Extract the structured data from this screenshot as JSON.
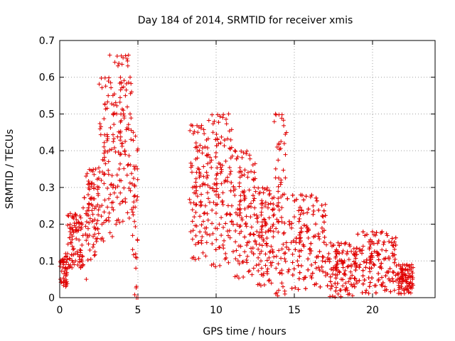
{
  "chart_data": {
    "type": "scatter",
    "title": "Day 184 of 2014, SRMTID for receiver xmis",
    "xlabel": "GPS time / hours",
    "ylabel": "SRMTID / TECUs",
    "xlim": [
      0,
      24
    ],
    "ylim": [
      0,
      0.7
    ],
    "xticks": [
      0,
      5,
      10,
      15,
      20
    ],
    "yticks": [
      0,
      0.1,
      0.2,
      0.3,
      0.4,
      0.5,
      0.6,
      0.7
    ],
    "ytick_labels": [
      "0",
      "0.1",
      "0.2",
      "0.3",
      "0.4",
      "0.5",
      "0.6",
      "0.7"
    ],
    "grid": true,
    "marker": "+",
    "color": "#e00000",
    "segments": [
      {
        "x_start": 0.0,
        "x_end": 0.5,
        "lower": 0.03,
        "upper": 0.12
      },
      {
        "x_start": 0.5,
        "x_end": 1.5,
        "lower": 0.08,
        "upper": 0.23
      },
      {
        "x_start": 1.5,
        "x_end": 2.5,
        "lower": 0.1,
        "upper": 0.35
      },
      {
        "x_start": 2.5,
        "x_end": 3.5,
        "lower": 0.15,
        "upper": 0.6
      },
      {
        "x_start": 3.5,
        "x_end": 4.6,
        "lower": 0.2,
        "upper": 0.66
      },
      {
        "x_start": 4.6,
        "x_end": 5.0,
        "lower": 0.0,
        "upper": 0.45
      },
      {
        "x_start": 8.3,
        "x_end": 9.5,
        "lower": 0.1,
        "upper": 0.47
      },
      {
        "x_start": 9.5,
        "x_end": 11.0,
        "lower": 0.08,
        "upper": 0.5
      },
      {
        "x_start": 11.0,
        "x_end": 12.5,
        "lower": 0.05,
        "upper": 0.4
      },
      {
        "x_start": 12.5,
        "x_end": 13.7,
        "lower": 0.03,
        "upper": 0.3
      },
      {
        "x_start": 13.7,
        "x_end": 14.5,
        "lower": 0.0,
        "upper": 0.5
      },
      {
        "x_start": 14.5,
        "x_end": 17.0,
        "lower": 0.02,
        "upper": 0.28
      },
      {
        "x_start": 17.0,
        "x_end": 19.0,
        "lower": 0.0,
        "upper": 0.15
      },
      {
        "x_start": 19.0,
        "x_end": 21.5,
        "lower": 0.01,
        "upper": 0.18
      },
      {
        "x_start": 21.5,
        "x_end": 22.6,
        "lower": 0.01,
        "upper": 0.09
      }
    ],
    "points": [
      [
        0.05,
        0.05
      ],
      [
        0.15,
        0.1
      ],
      [
        0.25,
        0.04
      ],
      [
        0.35,
        0.08
      ],
      [
        0.5,
        0.12
      ],
      [
        0.7,
        0.15
      ],
      [
        0.9,
        0.22
      ],
      [
        1.1,
        0.18
      ],
      [
        1.3,
        0.13
      ],
      [
        1.5,
        0.09
      ],
      [
        1.7,
        0.05
      ],
      [
        1.9,
        0.17
      ],
      [
        2.1,
        0.25
      ],
      [
        2.3,
        0.35
      ],
      [
        2.5,
        0.3
      ],
      [
        2.7,
        0.2
      ],
      [
        2.9,
        0.4
      ],
      [
        3.1,
        0.55
      ],
      [
        3.2,
        0.66
      ],
      [
        3.4,
        0.3
      ],
      [
        3.6,
        0.2
      ],
      [
        3.8,
        0.35
      ],
      [
        4.0,
        0.42
      ],
      [
        4.2,
        0.55
      ],
      [
        4.3,
        0.65
      ],
      [
        4.4,
        0.66
      ],
      [
        4.5,
        0.6
      ],
      [
        4.6,
        0.24
      ],
      [
        4.7,
        0.45
      ],
      [
        4.8,
        0.35
      ],
      [
        4.85,
        0.11
      ],
      [
        4.9,
        0.0
      ],
      [
        5.0,
        0.0
      ],
      [
        8.4,
        0.47
      ],
      [
        8.5,
        0.3
      ],
      [
        8.6,
        0.22
      ],
      [
        8.8,
        0.38
      ],
      [
        9.0,
        0.25
      ],
      [
        9.2,
        0.33
      ],
      [
        9.4,
        0.15
      ],
      [
        9.6,
        0.3
      ],
      [
        9.8,
        0.45
      ],
      [
        10.0,
        0.28
      ],
      [
        10.2,
        0.2
      ],
      [
        10.4,
        0.36
      ],
      [
        10.6,
        0.12
      ],
      [
        10.8,
        0.5
      ],
      [
        11.0,
        0.25
      ],
      [
        11.2,
        0.4
      ],
      [
        11.4,
        0.1
      ],
      [
        11.6,
        0.18
      ],
      [
        11.8,
        0.29
      ],
      [
        12.0,
        0.15
      ],
      [
        12.2,
        0.22
      ],
      [
        12.4,
        0.08
      ],
      [
        12.6,
        0.18
      ],
      [
        12.8,
        0.12
      ],
      [
        13.0,
        0.06
      ],
      [
        13.2,
        0.2
      ],
      [
        13.4,
        0.28
      ],
      [
        13.6,
        0.13
      ],
      [
        13.8,
        0.5
      ],
      [
        13.9,
        0.41
      ],
      [
        14.0,
        0.02
      ],
      [
        14.2,
        0.04
      ],
      [
        14.4,
        0.01
      ],
      [
        14.6,
        0.07
      ],
      [
        14.8,
        0.15
      ],
      [
        15.0,
        0.22
      ],
      [
        15.2,
        0.1
      ],
      [
        15.4,
        0.28
      ],
      [
        15.6,
        0.05
      ],
      [
        15.8,
        0.18
      ],
      [
        16.0,
        0.12
      ],
      [
        16.2,
        0.25
      ],
      [
        16.4,
        0.08
      ],
      [
        16.6,
        0.16
      ],
      [
        16.8,
        0.1
      ],
      [
        17.0,
        0.06
      ],
      [
        17.2,
        0.12
      ],
      [
        17.4,
        0.03
      ],
      [
        17.6,
        0.08
      ],
      [
        17.8,
        0.01
      ],
      [
        18.0,
        0.05
      ],
      [
        18.2,
        0.1
      ],
      [
        18.4,
        0.02
      ],
      [
        18.6,
        0.07
      ],
      [
        18.8,
        0.12
      ],
      [
        19.0,
        0.04
      ],
      [
        19.2,
        0.09
      ],
      [
        19.4,
        0.14
      ],
      [
        19.6,
        0.02
      ],
      [
        19.8,
        0.08
      ],
      [
        20.0,
        0.11
      ],
      [
        20.2,
        0.17
      ],
      [
        20.4,
        0.05
      ],
      [
        20.6,
        0.13
      ],
      [
        20.8,
        0.03
      ],
      [
        21.0,
        0.07
      ],
      [
        21.2,
        0.15
      ],
      [
        21.4,
        0.02
      ],
      [
        21.6,
        0.05
      ],
      [
        21.8,
        0.08
      ],
      [
        22.0,
        0.02
      ],
      [
        22.2,
        0.04
      ],
      [
        22.4,
        0.06
      ],
      [
        22.5,
        0.09
      ]
    ]
  }
}
